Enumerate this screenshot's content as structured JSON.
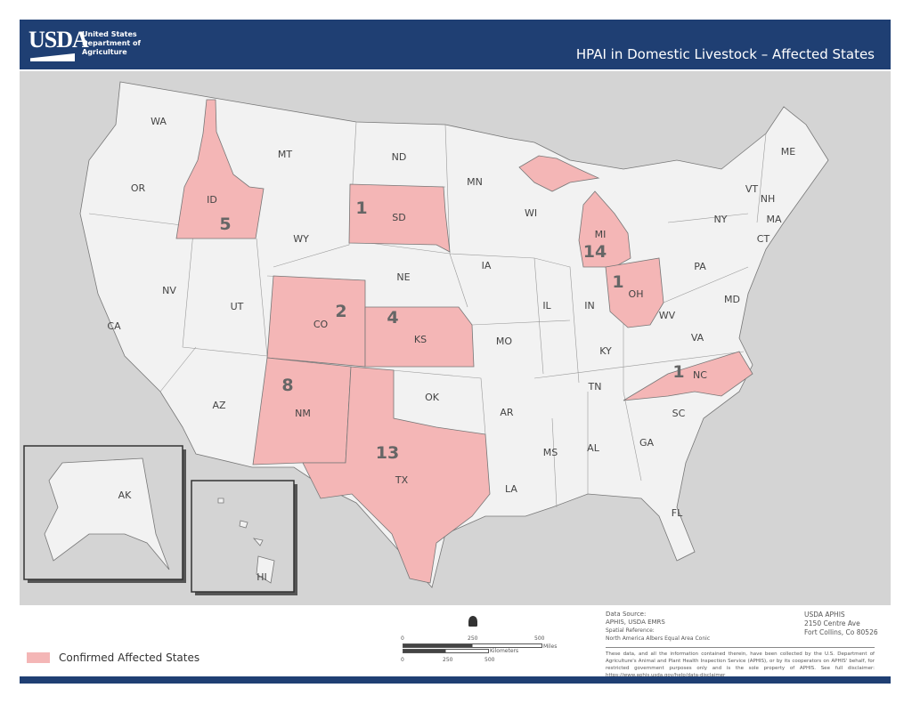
{
  "header": {
    "logo": "USDA",
    "agency": [
      "United States",
      "Department of",
      "Agriculture"
    ],
    "title": "HPAI in Domestic Livestock – Affected States"
  },
  "colors": {
    "affected": "#f4b6b6",
    "unaffected": "#f2f2f2",
    "background": "#d4d4d4",
    "brand": "#1f3f73"
  },
  "states": {
    "WA": "WA",
    "OR": "OR",
    "CA": "CA",
    "NV": "NV",
    "ID": "ID",
    "MT": "MT",
    "WY": "WY",
    "UT": "UT",
    "AZ": "AZ",
    "CO": "CO",
    "NM": "NM",
    "ND": "ND",
    "SD": "SD",
    "NE": "NE",
    "KS": "KS",
    "OK": "OK",
    "TX": "TX",
    "MN": "MN",
    "IA": "IA",
    "MO": "MO",
    "AR": "AR",
    "LA": "LA",
    "WI": "WI",
    "IL": "IL",
    "MI": "MI",
    "IN": "IN",
    "OH": "OH",
    "KY": "KY",
    "TN": "TN",
    "MS": "MS",
    "AL": "AL",
    "GA": "GA",
    "FL": "FL",
    "SC": "SC",
    "NC": "NC",
    "VA": "VA",
    "WV": "WV",
    "PA": "PA",
    "NY": "NY",
    "MD": "MD",
    "VT": "VT",
    "NH": "NH",
    "ME": "ME",
    "MA": "MA",
    "CT": "CT",
    "AK": "AK",
    "HI": "HI"
  },
  "counts": {
    "ID": "5",
    "SD": "1",
    "CO": "2",
    "KS": "4",
    "NM": "8",
    "TX": "13",
    "MI": "14",
    "OH": "1",
    "NC": "1"
  },
  "legend": {
    "label": "Confirmed Affected States"
  },
  "scale": {
    "miles": [
      "0",
      "250",
      "500"
    ],
    "miles_label": "Miles",
    "km": [
      "0",
      "250",
      "500"
    ],
    "km_label": "Kilometers"
  },
  "source": {
    "l1": "Data Source:",
    "l2": "APHIS, USDA EMRS",
    "l3": "Spatial Reference:",
    "l4": "North America Albers Equal Area Conic"
  },
  "address": {
    "l1": "USDA APHIS",
    "l2": "2150 Centre Ave",
    "l3": "Fort Collins, Co 80526"
  },
  "disclaimer": "These data, and all the information contained therein, have been collected by the U.S. Department of Agriculture's Animal and Plant Health Inspection Service (APHIS), or by its cooperators on APHIS' behalf, for restricted government purposes only and is the sole property of APHIS. See full disclaimer: https://www.aphis.usda.gov/help/data-disclaimer"
}
